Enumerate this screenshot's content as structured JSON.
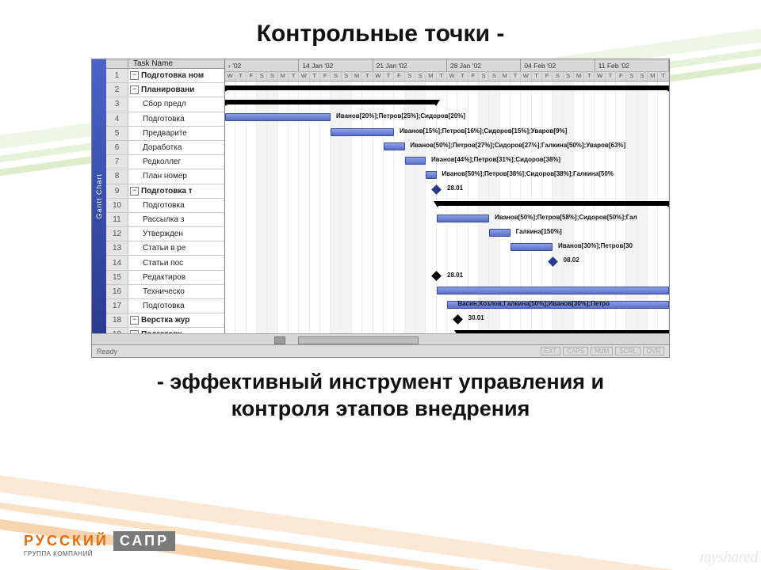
{
  "slide": {
    "title": "Контрольные точки -",
    "subtitle_l1": "- эффективный инструмент управления и",
    "subtitle_l2": "контроля этапов внедрения"
  },
  "logo": {
    "main": "РУССКИЙ",
    "sub": "ГРУППА КОМПАНИЙ",
    "box": "САПР"
  },
  "watermark": "myshared",
  "gantt": {
    "side_tab": "Gantt Chart",
    "columns": {
      "task": "Task Name"
    },
    "status": "Ready",
    "status_boxes": [
      "EXT",
      "CAPS",
      "NUM",
      "SCRL",
      "OVR"
    ],
    "timeline": {
      "weeks": [
        "› '02",
        "14 Jan '02",
        "21 Jan '02",
        "28 Jan '02",
        "04 Feb '02",
        "11 Feb '02"
      ],
      "day_pattern": [
        "W",
        "T",
        "F",
        "S",
        "S",
        "M",
        "T"
      ],
      "total_days": 42,
      "weekend_idx": [
        3,
        4
      ],
      "row_height": 18.2
    },
    "tasks": [
      {
        "id": 1,
        "name": "Подготовка ном",
        "type": "summary",
        "bar": {
          "start": 0,
          "end": 42
        }
      },
      {
        "id": 2,
        "name": "Планировани",
        "type": "summary",
        "bar": {
          "start": 0,
          "end": 20
        }
      },
      {
        "id": 3,
        "name": "Сбор предл",
        "type": "task",
        "bar": {
          "start": 0,
          "end": 10
        },
        "label": "Иванов[20%];Петров[25%];Сидоров[20%]",
        "label_at": 10.5
      },
      {
        "id": 4,
        "name": "Подготовка",
        "type": "task",
        "bar": {
          "start": 10,
          "end": 16
        },
        "label": "Иванов[15%];Петров[16%];Сидоров[15%];Уваров[9%]",
        "label_at": 16.5
      },
      {
        "id": 5,
        "name": "Предварите",
        "type": "task",
        "bar": {
          "start": 15,
          "end": 17
        },
        "label": "Иванов[50%];Петров[27%];Сидоров[27%];Галкина[50%];Уваров[63%]",
        "label_at": 17.5
      },
      {
        "id": 6,
        "name": "Доработка",
        "type": "task",
        "bar": {
          "start": 17,
          "end": 19
        },
        "label": "Иванов[44%];Петров[31%];Сидоров[38%]",
        "label_at": 19.5
      },
      {
        "id": 7,
        "name": "Редколлег",
        "type": "task",
        "bar": {
          "start": 19,
          "end": 20
        },
        "label": "Иванов[50%];Петров[38%];Сидоров[38%];Галкина[50%",
        "label_at": 20.5
      },
      {
        "id": 8,
        "name": "План номер",
        "type": "milestone",
        "at": 20,
        "label": "28.01",
        "label_at": 21,
        "black": false
      },
      {
        "id": 9,
        "name": "Подготовка т",
        "type": "summary",
        "bar": {
          "start": 20,
          "end": 42
        }
      },
      {
        "id": 10,
        "name": "Подготовка",
        "type": "task",
        "bar": {
          "start": 20,
          "end": 25
        },
        "label": "Иванов[50%];Петров[58%];Сидоров[50%];Гал",
        "label_at": 25.5
      },
      {
        "id": 11,
        "name": "Рассылка з",
        "type": "task",
        "bar": {
          "start": 25,
          "end": 27
        },
        "label": "Галкина[150%]",
        "label_at": 27.5
      },
      {
        "id": 12,
        "name": "Утвержден",
        "type": "task",
        "bar": {
          "start": 27,
          "end": 31
        },
        "label": "Иванов[30%];Петров[30",
        "label_at": 31.5
      },
      {
        "id": 13,
        "name": "Статьи в ре",
        "type": "milestone",
        "at": 31,
        "label": "08.02",
        "label_at": 32,
        "black": false
      },
      {
        "id": 14,
        "name": "Статьи пос",
        "type": "milestone",
        "at": 20,
        "label": "28.01",
        "label_at": 21,
        "black": true
      },
      {
        "id": 15,
        "name": "Редактиров",
        "type": "task",
        "bar": {
          "start": 20,
          "end": 42
        }
      },
      {
        "id": 16,
        "name": "Техническо",
        "type": "task",
        "bar": {
          "start": 21,
          "end": 42
        },
        "label": "Васин;Козлов;Галкина[50%];Иванов[30%];Петро",
        "label_at": 22
      },
      {
        "id": 17,
        "name": "Подготовка",
        "type": "milestone",
        "at": 22,
        "label": "30.01",
        "label_at": 23,
        "black": true
      },
      {
        "id": 18,
        "name": "Верстка жур",
        "type": "summary",
        "bar": {
          "start": 22,
          "end": 42
        }
      },
      {
        "id": 19,
        "name": "Подготовк",
        "type": "summary",
        "bar": {
          "start": 22,
          "end": 42
        }
      }
    ],
    "colors": {
      "bar_fill_top": "#8da2e8",
      "bar_fill_bot": "#5a6fc8",
      "bar_border": "#3a4a9a",
      "summary": "#000000",
      "milestone": "#2a3a8a",
      "panel_bg": "#f2f2f2",
      "header_bg": "#d8d8d8",
      "grid": "#ededed"
    }
  }
}
